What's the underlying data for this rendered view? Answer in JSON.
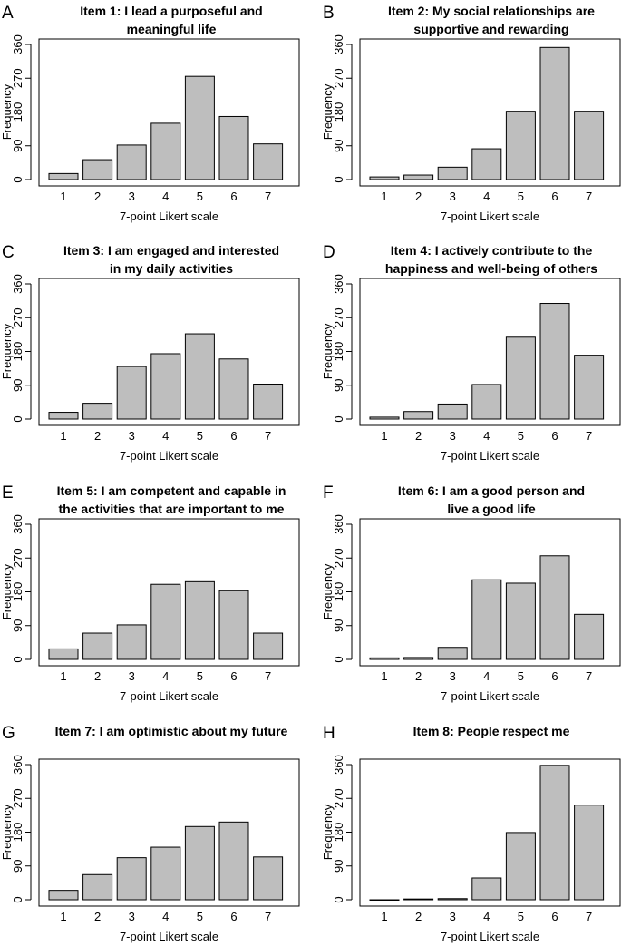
{
  "chart_data": [
    {
      "panel": "A",
      "type": "bar",
      "title": [
        "Item 1: I lead a purposeful and",
        "meaningful life"
      ],
      "categories": [
        "1",
        "2",
        "3",
        "4",
        "5",
        "6",
        "7"
      ],
      "values": [
        16,
        53,
        92,
        150,
        275,
        168,
        95
      ],
      "xlabel": "7-point Likert scale",
      "ylabel": "Frequency",
      "yticks": [
        0,
        90,
        180,
        270,
        360
      ],
      "ylim": [
        0,
        370
      ]
    },
    {
      "panel": "B",
      "type": "bar",
      "title": [
        "Item 2: My social relationships are",
        "supportive and rewarding"
      ],
      "categories": [
        "1",
        "2",
        "3",
        "4",
        "5",
        "6",
        "7"
      ],
      "values": [
        7,
        12,
        33,
        82,
        182,
        352,
        182
      ],
      "xlabel": "7-point Likert scale",
      "ylabel": "Frequency",
      "yticks": [
        0,
        90,
        180,
        270,
        360
      ],
      "ylim": [
        0,
        370
      ]
    },
    {
      "panel": "C",
      "type": "bar",
      "title": [
        "Item 3: I am engaged and interested",
        "in my daily activities"
      ],
      "categories": [
        "1",
        "2",
        "3",
        "4",
        "5",
        "6",
        "7"
      ],
      "values": [
        18,
        42,
        140,
        174,
        227,
        160,
        93
      ],
      "xlabel": "7-point Likert scale",
      "ylabel": "Frequency",
      "yticks": [
        0,
        90,
        180,
        270,
        360
      ],
      "ylim": [
        0,
        370
      ]
    },
    {
      "panel": "D",
      "type": "bar",
      "title": [
        "Item 4: I actively contribute to the",
        "happiness and well-being of others"
      ],
      "categories": [
        "1",
        "2",
        "3",
        "4",
        "5",
        "6",
        "7"
      ],
      "values": [
        5,
        20,
        40,
        92,
        218,
        308,
        170
      ],
      "xlabel": "7-point Likert scale",
      "ylabel": "Frequency",
      "yticks": [
        0,
        90,
        180,
        270,
        360
      ],
      "ylim": [
        0,
        370
      ]
    },
    {
      "panel": "E",
      "type": "bar",
      "title": [
        "Item 5: I am competent and capable in",
        "the activities that are important to me"
      ],
      "categories": [
        "1",
        "2",
        "3",
        "4",
        "5",
        "6",
        "7"
      ],
      "values": [
        28,
        70,
        92,
        200,
        207,
        183,
        70
      ],
      "xlabel": "7-point Likert scale",
      "ylabel": "Frequency",
      "yticks": [
        0,
        90,
        180,
        270,
        360
      ],
      "ylim": [
        0,
        370
      ]
    },
    {
      "panel": "F",
      "type": "bar",
      "title": [
        "Item 6: I am a good person and",
        "live a good life"
      ],
      "categories": [
        "1",
        "2",
        "3",
        "4",
        "5",
        "6",
        "7"
      ],
      "values": [
        4,
        5,
        32,
        212,
        203,
        276,
        120
      ],
      "xlabel": "7-point Likert scale",
      "ylabel": "Frequency",
      "yticks": [
        0,
        90,
        180,
        270,
        360
      ],
      "ylim": [
        0,
        370
      ]
    },
    {
      "panel": "G",
      "type": "bar",
      "title": [
        "Item 7: I am optimistic about my future"
      ],
      "categories": [
        "1",
        "2",
        "3",
        "4",
        "5",
        "6",
        "7"
      ],
      "values": [
        25,
        67,
        112,
        140,
        195,
        207,
        114
      ],
      "xlabel": "7-point Likert scale",
      "ylabel": "Frequency",
      "yticks": [
        0,
        90,
        180,
        270,
        360
      ],
      "ylim": [
        0,
        370
      ]
    },
    {
      "panel": "H",
      "type": "bar",
      "title": [
        "Item 8: People respect me"
      ],
      "categories": [
        "1",
        "2",
        "3",
        "4",
        "5",
        "6",
        "7"
      ],
      "values": [
        0,
        2,
        3,
        58,
        179,
        358,
        252
      ],
      "xlabel": "7-point Likert scale",
      "ylabel": "Frequency",
      "yticks": [
        0,
        90,
        180,
        270,
        360
      ],
      "ylim": [
        0,
        370
      ]
    }
  ]
}
